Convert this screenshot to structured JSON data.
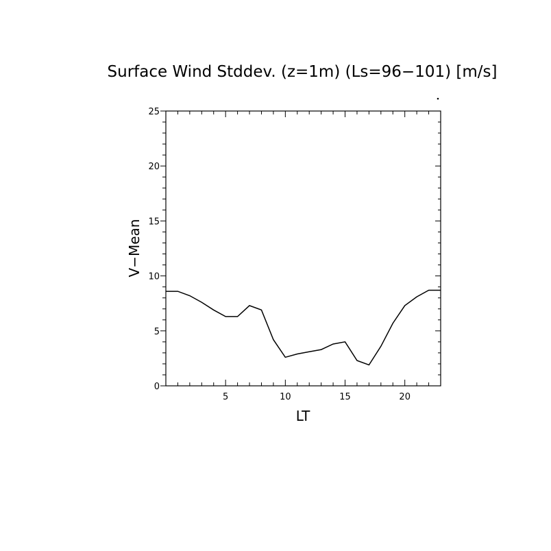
{
  "chart_data": {
    "type": "line",
    "title": "Surface Wind Stddev. (z=1m) (Ls=96−101) [m/s]",
    "xlabel": "LT",
    "ylabel": "V−Mean",
    "xlim": [
      0,
      23
    ],
    "ylim": [
      0,
      25
    ],
    "xticks": [
      5,
      10,
      15,
      20
    ],
    "yticks": [
      0,
      5,
      10,
      15,
      20,
      25
    ],
    "xtick_labels": [
      "5",
      "10",
      "15",
      "20"
    ],
    "ytick_labels": [
      "0",
      "5",
      "10",
      "15",
      "20",
      "25"
    ],
    "x_minor_step": 1,
    "y_minor_step": 1,
    "grid": false,
    "series": [
      {
        "x": [
          0,
          1,
          2,
          3,
          4,
          5,
          6,
          7,
          8,
          9,
          10,
          11,
          12,
          13,
          14,
          15,
          16,
          17,
          18,
          19,
          20,
          21,
          22,
          23
        ],
        "values": [
          8.6,
          8.6,
          8.2,
          7.6,
          6.9,
          6.3,
          6.3,
          7.3,
          6.9,
          4.2,
          2.6,
          2.9,
          3.1,
          3.3,
          3.8,
          4.0,
          2.3,
          1.9,
          3.6,
          5.7,
          7.3,
          8.1,
          8.7,
          8.7
        ]
      }
    ],
    "line_color": "#000000"
  }
}
